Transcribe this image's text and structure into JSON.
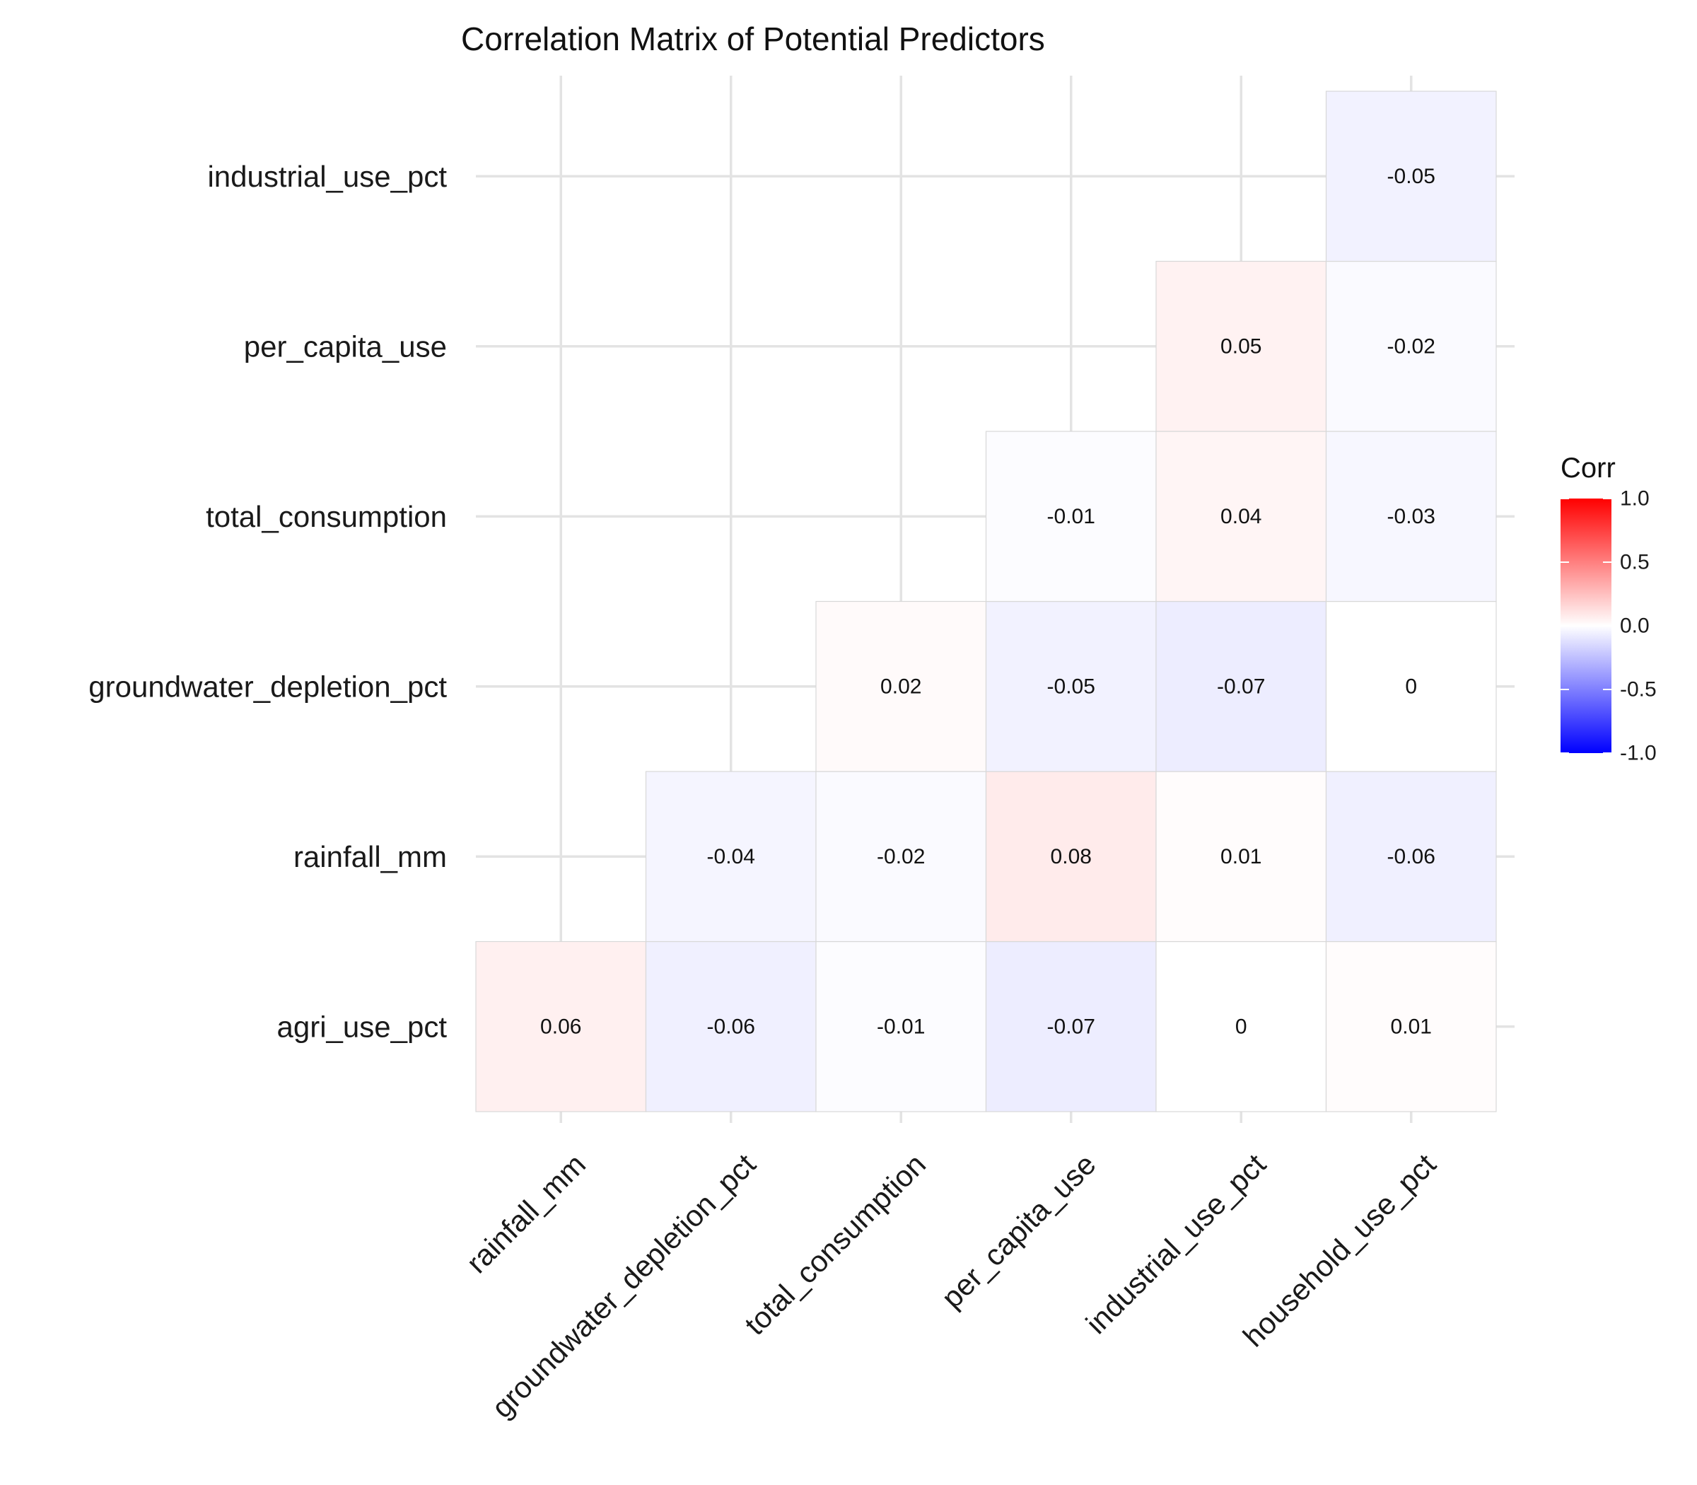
{
  "chart_data": {
    "type": "heatmap",
    "title": "Correlation Matrix of Potential Predictors",
    "x_categories": [
      "rainfall_mm",
      "groundwater_depletion_pct",
      "total_consumption",
      "per_capita_use",
      "industrial_use_pct",
      "household_use_pct"
    ],
    "y_categories": [
      "agri_use_pct",
      "rainfall_mm",
      "groundwater_depletion_pct",
      "total_consumption",
      "per_capita_use",
      "industrial_use_pct"
    ],
    "cells": [
      {
        "x": "rainfall_mm",
        "y": "agri_use_pct",
        "value": 0.06,
        "label": "0.06"
      },
      {
        "x": "groundwater_depletion_pct",
        "y": "agri_use_pct",
        "value": -0.06,
        "label": "-0.06"
      },
      {
        "x": "total_consumption",
        "y": "agri_use_pct",
        "value": -0.01,
        "label": "-0.01"
      },
      {
        "x": "per_capita_use",
        "y": "agri_use_pct",
        "value": -0.07,
        "label": "-0.07"
      },
      {
        "x": "industrial_use_pct",
        "y": "agri_use_pct",
        "value": 0.0,
        "label": "0"
      },
      {
        "x": "household_use_pct",
        "y": "agri_use_pct",
        "value": 0.01,
        "label": "0.01"
      },
      {
        "x": "groundwater_depletion_pct",
        "y": "rainfall_mm",
        "value": -0.04,
        "label": "-0.04"
      },
      {
        "x": "total_consumption",
        "y": "rainfall_mm",
        "value": -0.02,
        "label": "-0.02"
      },
      {
        "x": "per_capita_use",
        "y": "rainfall_mm",
        "value": 0.08,
        "label": "0.08"
      },
      {
        "x": "industrial_use_pct",
        "y": "rainfall_mm",
        "value": 0.01,
        "label": "0.01"
      },
      {
        "x": "household_use_pct",
        "y": "rainfall_mm",
        "value": -0.06,
        "label": "-0.06"
      },
      {
        "x": "total_consumption",
        "y": "groundwater_depletion_pct",
        "value": 0.02,
        "label": "0.02"
      },
      {
        "x": "per_capita_use",
        "y": "groundwater_depletion_pct",
        "value": -0.05,
        "label": "-0.05"
      },
      {
        "x": "industrial_use_pct",
        "y": "groundwater_depletion_pct",
        "value": -0.07,
        "label": "-0.07"
      },
      {
        "x": "household_use_pct",
        "y": "groundwater_depletion_pct",
        "value": 0.0,
        "label": "0"
      },
      {
        "x": "per_capita_use",
        "y": "total_consumption",
        "value": -0.01,
        "label": "-0.01"
      },
      {
        "x": "industrial_use_pct",
        "y": "total_consumption",
        "value": 0.04,
        "label": "0.04"
      },
      {
        "x": "household_use_pct",
        "y": "total_consumption",
        "value": -0.03,
        "label": "-0.03"
      },
      {
        "x": "industrial_use_pct",
        "y": "per_capita_use",
        "value": 0.05,
        "label": "0.05"
      },
      {
        "x": "household_use_pct",
        "y": "per_capita_use",
        "value": -0.02,
        "label": "-0.02"
      },
      {
        "x": "household_use_pct",
        "y": "industrial_use_pct",
        "value": -0.05,
        "label": "-0.05"
      }
    ],
    "legend": {
      "title": "Corr",
      "placement": "right",
      "range": [
        -1.0,
        1.0
      ],
      "ticks": [
        1.0,
        0.5,
        0.0,
        -0.5,
        -1.0
      ],
      "tick_labels": [
        "1.0",
        "0.5",
        "0.0",
        "-0.5",
        "-1.0"
      ],
      "colors": {
        "low": "#0000FF",
        "mid": "#FFFFFF",
        "high": "#FF0000"
      }
    },
    "grid": true
  }
}
